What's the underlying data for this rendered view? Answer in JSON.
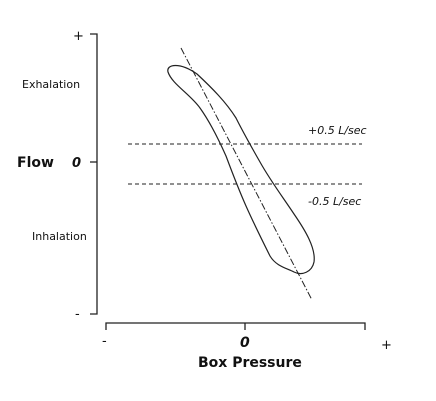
{
  "y_axis": {
    "label": "Flow",
    "top_tick": "+",
    "zero_tick": "0",
    "bottom_tick": "-",
    "upper_region": "Exhalation",
    "lower_region": "Inhalation"
  },
  "x_axis": {
    "label": "Box Pressure",
    "left_tick": "-",
    "zero_tick": "0",
    "right_tick": "+"
  },
  "reference_lines": {
    "upper": "+0.5 L/sec",
    "lower": "-0.5 L/sec"
  }
}
